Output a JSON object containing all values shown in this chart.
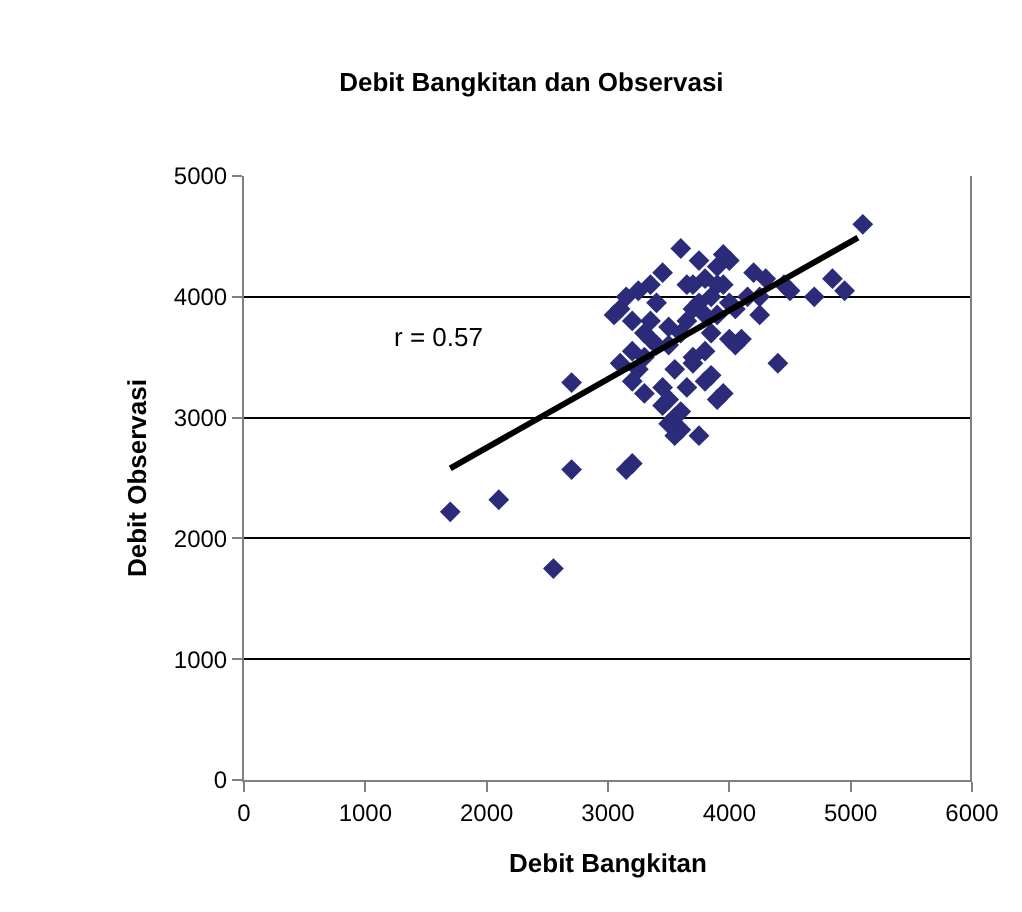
{
  "chart_data": {
    "type": "scatter",
    "title": "Debit Bangkitan dan Observasi",
    "xlabel": "Debit Bangkitan",
    "ylabel": "Debit Observasi",
    "xlim": [
      0,
      6000
    ],
    "xticks": [
      0,
      1000,
      2000,
      3000,
      4000,
      5000,
      6000
    ],
    "ylim": [
      0,
      5000
    ],
    "yticks": [
      0,
      1000,
      2000,
      3000,
      4000,
      5000
    ],
    "grid": "y",
    "marker": "diamond",
    "annotations": [
      "r = 0.57"
    ],
    "series": [
      {
        "color": "#2b2b7a",
        "x": [
          1700,
          2100,
          2550,
          2700,
          2700,
          3100,
          3150,
          3200,
          3200,
          3250,
          3250,
          3300,
          3300,
          3350,
          3400,
          3400,
          3450,
          3450,
          3500,
          3500,
          3550,
          3550,
          3600,
          3600,
          3650,
          3650,
          3700,
          3700,
          3750,
          3750,
          3800,
          3800,
          3850,
          3850,
          3900,
          3900,
          3950,
          3950,
          4000,
          4000,
          4050,
          4100,
          4150,
          4200,
          4250,
          4300,
          4400,
          4450,
          4500,
          4700,
          4850,
          4950,
          5100,
          3050,
          3100,
          3150,
          3200,
          3300,
          3350,
          3450,
          3500,
          3550,
          3600,
          3650,
          3700,
          3750,
          3800,
          3850,
          3900,
          3950,
          4000,
          3200,
          3350,
          3500,
          3600,
          3700,
          3800,
          3900,
          4050,
          4250
        ],
        "values": [
          2220,
          2320,
          1750,
          3290,
          2570,
          3900,
          2570,
          2620,
          3800,
          4050,
          3400,
          3700,
          3500,
          4100,
          3950,
          3600,
          3100,
          4200,
          3750,
          2950,
          3400,
          3000,
          4400,
          2900,
          3800,
          4100,
          3500,
          3900,
          4300,
          2850,
          3300,
          4150,
          4000,
          3700,
          4250,
          3150,
          4350,
          3200,
          4300,
          3650,
          3900,
          3650,
          4000,
          4200,
          4000,
          4150,
          3450,
          4100,
          4050,
          4000,
          4150,
          4050,
          4600,
          3850,
          3450,
          4000,
          3550,
          3200,
          3800,
          3250,
          3600,
          2850,
          3700,
          3250,
          4100,
          3950,
          3550,
          3350,
          3850,
          4100,
          3950,
          3300,
          3650,
          3150,
          3050,
          3450,
          3850,
          4100,
          3600,
          3850
        ]
      },
      {
        "type": "line",
        "marker": "none",
        "color": "#000000",
        "x": [
          1700,
          5060
        ],
        "values": [
          2580,
          4490
        ]
      }
    ]
  }
}
